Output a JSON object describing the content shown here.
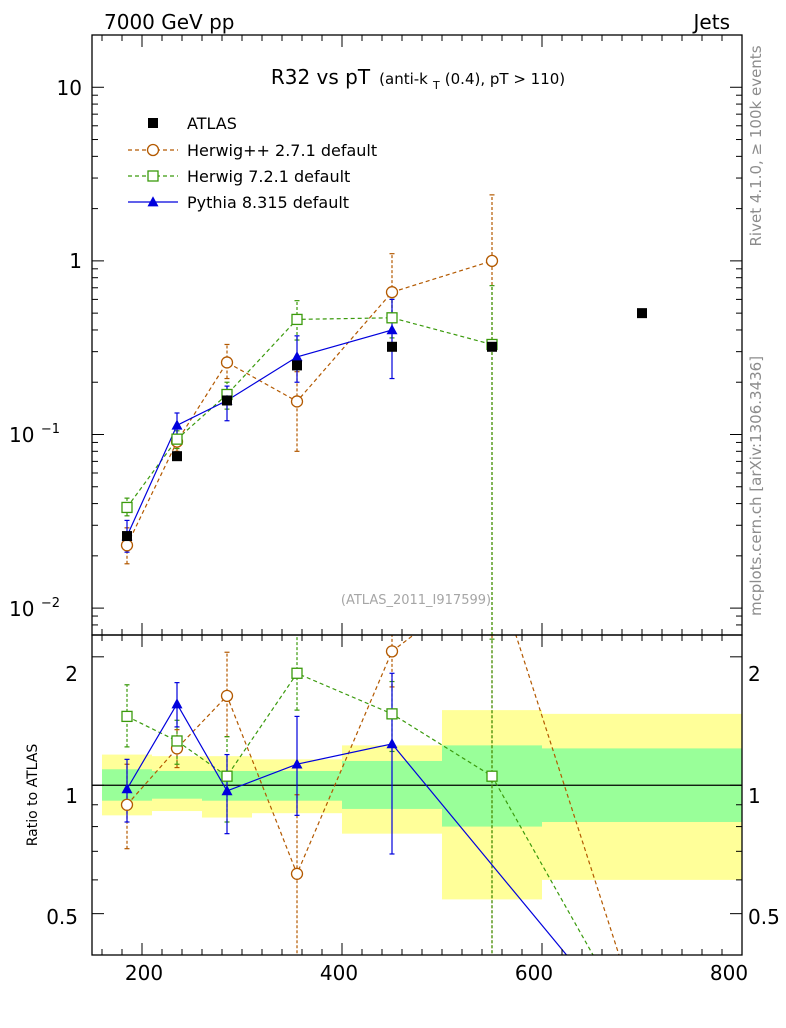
{
  "header": {
    "left": "7000 GeV pp",
    "right": "Jets"
  },
  "side_labels": {
    "rivet": "Rivet 4.1.0, ≥ 100k events",
    "mcplots": "mcplots.cern.ch [arXiv:1306.3436]"
  },
  "chart_data": {
    "type": "scatter",
    "title": "R32 vs pT",
    "title_sub": "(anti-k",
    "title_sub_index": "T",
    "title_sub_rest": "(0.4), pT > 110)",
    "analysis_id": "(ATLAS_2011_I917599)",
    "xlim": [
      150,
      800
    ],
    "x_ticks": [
      "200",
      "400",
      "600",
      "800"
    ],
    "main_panel": {
      "yscale": "log",
      "ylim": [
        0.007,
        20
      ],
      "y_tick_labels": {
        "t1": {
          "base": "10",
          "exp": "−2"
        },
        "t2": {
          "base": "10",
          "exp": "−1"
        },
        "t3": "1",
        "t4": "10"
      }
    },
    "ratio_panel": {
      "ylabel": "Ratio to ATLAS",
      "ylim": [
        0.4,
        2.25
      ],
      "y_tick_labels": [
        "0.5",
        "1",
        "2"
      ]
    },
    "series": [
      {
        "name": "ATLAS",
        "color": "#000000",
        "marker": "filled-square",
        "linestyle": "none",
        "x": [
          185,
          235,
          285,
          355,
          450,
          550,
          700
        ],
        "y": [
          0.026,
          0.075,
          0.157,
          0.25,
          0.32,
          0.32,
          0.5
        ]
      },
      {
        "name": "Herwig++ 2.7.1 default",
        "color": "#b35900",
        "marker": "open-circle",
        "linestyle": "dashed",
        "x": [
          185,
          235,
          285,
          355,
          450,
          550
        ],
        "y": [
          0.023,
          0.091,
          0.26,
          0.155,
          0.66,
          1.0
        ],
        "err_lo": [
          0.018,
          0.08,
          0.21,
          0.08,
          0.5,
          0.007
        ],
        "err_hi": [
          0.029,
          0.1,
          0.33,
          0.23,
          1.1,
          2.4
        ],
        "ratio": [
          0.9,
          1.22,
          1.62,
          0.62,
          2.06,
          3.1
        ],
        "ratio_lo": [
          0.71,
          1.1,
          1.3,
          0.3,
          1.7,
          0.3
        ],
        "ratio_hi": [
          1.12,
          1.35,
          2.05,
          0.95,
          2.45,
          3.5
        ]
      },
      {
        "name": "Herwig 7.2.1 default",
        "color": "#3a9a0c",
        "marker": "open-square",
        "linestyle": "dashed",
        "x": [
          185,
          235,
          285,
          355,
          450,
          550
        ],
        "y": [
          0.038,
          0.094,
          0.17,
          0.46,
          0.47,
          0.33
        ],
        "err_lo": [
          0.034,
          0.083,
          0.14,
          0.35,
          0.36,
          0.007
        ],
        "err_hi": [
          0.043,
          0.105,
          0.2,
          0.59,
          0.6,
          0.72
        ],
        "ratio": [
          1.45,
          1.27,
          1.05,
          1.83,
          1.47,
          1.05
        ],
        "ratio_lo": [
          1.23,
          1.12,
          0.82,
          1.5,
          1.2,
          0.3
        ],
        "ratio_hi": [
          1.72,
          1.42,
          1.3,
          2.35,
          1.75,
          2.2
        ]
      },
      {
        "name": "Pythia 8.315 default",
        "color": "#0000dd",
        "marker": "filled-triangle",
        "linestyle": "solid",
        "x": [
          185,
          235,
          285,
          355,
          450
        ],
        "y": [
          0.026,
          0.113,
          0.157,
          0.28,
          0.4
        ],
        "err_lo": [
          0.021,
          0.095,
          0.12,
          0.2,
          0.21
        ],
        "err_hi": [
          0.032,
          0.133,
          0.19,
          0.37,
          0.6
        ],
        "ratio": [
          0.98,
          1.55,
          0.97,
          1.12,
          1.25
        ],
        "ratio_lo": [
          0.82,
          1.37,
          0.77,
          0.85,
          0.69
        ],
        "ratio_hi": [
          1.15,
          1.74,
          1.18,
          1.45,
          1.83
        ],
        "ratio_extend": [
          [
            450,
            1.25
          ],
          [
            645,
            0.35
          ]
        ]
      }
    ],
    "herwigpp_ratio_extend": [
      [
        550,
        3.1
      ],
      [
        570,
        2.4
      ],
      [
        685,
        0.35
      ]
    ],
    "herwig7_ratio_extend": [
      [
        550,
        1.05
      ],
      [
        665,
        0.35
      ]
    ],
    "ratio_bands": [
      {
        "x0": 160,
        "x1": 210,
        "yellow": [
          0.85,
          1.18
        ],
        "green": [
          0.92,
          1.09
        ]
      },
      {
        "x0": 210,
        "x1": 260,
        "yellow": [
          0.87,
          1.17
        ],
        "green": [
          0.93,
          1.08
        ]
      },
      {
        "x0": 260,
        "x1": 310,
        "yellow": [
          0.84,
          1.17
        ],
        "green": [
          0.92,
          1.08
        ]
      },
      {
        "x0": 310,
        "x1": 400,
        "yellow": [
          0.86,
          1.15
        ],
        "green": [
          0.92,
          1.08
        ]
      },
      {
        "x0": 400,
        "x1": 500,
        "yellow": [
          0.77,
          1.24
        ],
        "green": [
          0.88,
          1.14
        ]
      },
      {
        "x0": 500,
        "x1": 600,
        "yellow": [
          0.54,
          1.5
        ],
        "green": [
          0.8,
          1.24
        ]
      },
      {
        "x0": 600,
        "x1": 800,
        "yellow": [
          0.6,
          1.47
        ],
        "green": [
          0.82,
          1.22
        ]
      }
    ]
  }
}
